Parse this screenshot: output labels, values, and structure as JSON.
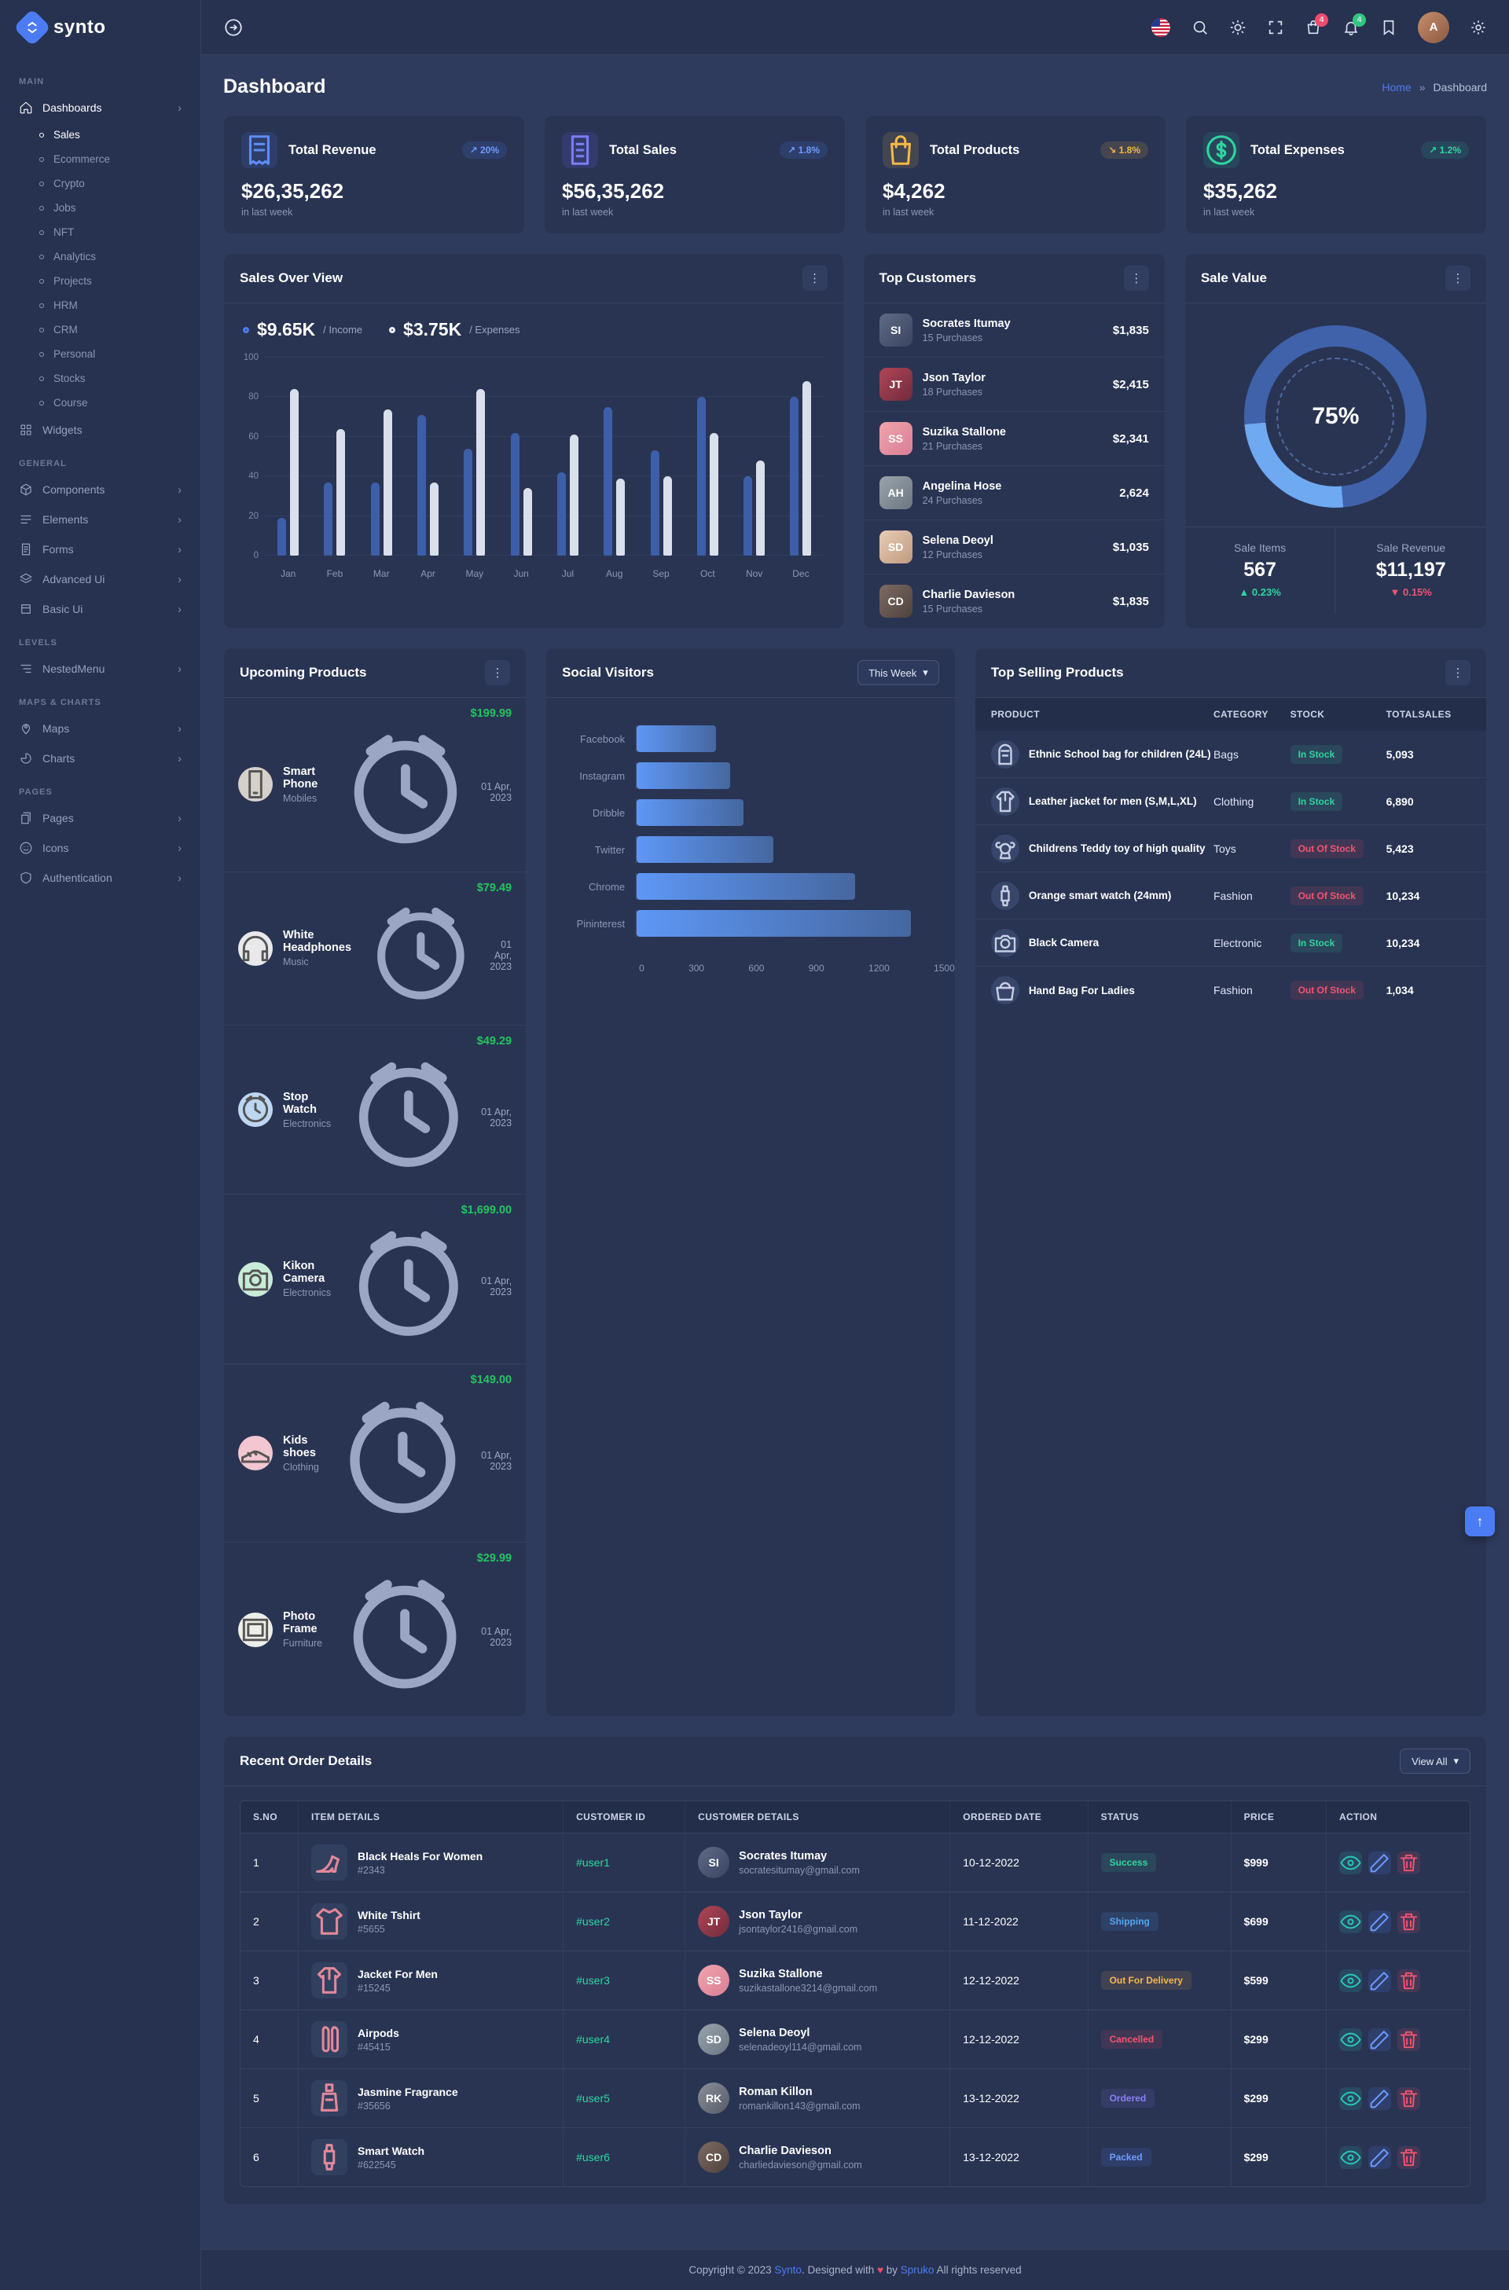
{
  "brand": {
    "name": "synto"
  },
  "topbar": {
    "cart_badge": "4",
    "bell_badge": "4",
    "avatar_initial": "A"
  },
  "sidebar": {
    "sections": [
      {
        "label": "MAIN",
        "items": [
          {
            "label": "Dashboards",
            "icon": "home",
            "chevron": true,
            "expanded": true,
            "active_child": "Sales",
            "children": [
              "Sales",
              "Ecommerce",
              "Crypto",
              "Jobs",
              "NFT",
              "Analytics",
              "Projects",
              "HRM",
              "CRM",
              "Personal",
              "Stocks",
              "Course"
            ]
          },
          {
            "label": "Widgets",
            "icon": "widgets",
            "chevron": false
          }
        ]
      },
      {
        "label": "GENERAL",
        "items": [
          {
            "label": "Components",
            "icon": "components",
            "chevron": true
          },
          {
            "label": "Elements",
            "icon": "elements",
            "chevron": true
          },
          {
            "label": "Forms",
            "icon": "forms",
            "chevron": true
          },
          {
            "label": "Advanced Ui",
            "icon": "advanced",
            "chevron": true
          },
          {
            "label": "Basic Ui",
            "icon": "basic",
            "chevron": true
          }
        ]
      },
      {
        "label": "LEVELS",
        "items": [
          {
            "label": "NestedMenu",
            "icon": "nested",
            "chevron": true
          }
        ]
      },
      {
        "label": "MAPS & CHARTS",
        "items": [
          {
            "label": "Maps",
            "icon": "maps",
            "chevron": true
          },
          {
            "label": "Charts",
            "icon": "charts",
            "chevron": true
          }
        ]
      },
      {
        "label": "PAGES",
        "items": [
          {
            "label": "Pages",
            "icon": "pages",
            "chevron": true
          },
          {
            "label": "Icons",
            "icon": "icons",
            "chevron": true
          },
          {
            "label": "Authentication",
            "icon": "auth",
            "chevron": true
          }
        ]
      }
    ]
  },
  "page": {
    "title": "Dashboard",
    "breadcrumb_home": "Home",
    "breadcrumb_sep": "»",
    "breadcrumb_current": "Dashboard"
  },
  "stats": {
    "cards": [
      {
        "title": "Total Revenue",
        "value": "$26,35,262",
        "sub": "in last week",
        "badge": "20%",
        "trend": "up",
        "color": "blue",
        "icon": "receipt"
      },
      {
        "title": "Total Sales",
        "value": "$56,35,262",
        "sub": "in last week",
        "badge": "1.8%",
        "trend": "up",
        "color": "indigo",
        "icon": "docs"
      },
      {
        "title": "Total Products",
        "value": "$4,262",
        "sub": "in last week",
        "badge": "1.8%",
        "trend": "down",
        "color": "yellow",
        "icon": "bag"
      },
      {
        "title": "Total Expenses",
        "value": "$35,262",
        "sub": "in last week",
        "badge": "1.2%",
        "trend": "up",
        "color": "green",
        "icon": "dollar"
      }
    ]
  },
  "sales": {
    "title": "Sales Over View",
    "income_value": "$9.65K",
    "income_label": "/ Income",
    "expenses_value": "$3.75K",
    "expenses_label": "/ Expenses",
    "chart_data": {
      "type": "bar",
      "categories": [
        "Jan",
        "Feb",
        "Mar",
        "Apr",
        "May",
        "Jun",
        "Jul",
        "Aug",
        "Sep",
        "Oct",
        "Nov",
        "Dec"
      ],
      "series": [
        {
          "name": "Income",
          "values": [
            19,
            37,
            37,
            71,
            54,
            62,
            42,
            75,
            53,
            80,
            40,
            80
          ]
        },
        {
          "name": "Expenses",
          "values": [
            84,
            64,
            74,
            37,
            84,
            34,
            61,
            39,
            40,
            62,
            48,
            88
          ]
        }
      ],
      "yticks": [
        100,
        80,
        60,
        40,
        20,
        0
      ],
      "ylim": [
        0,
        100
      ],
      "grid": true,
      "legend_position": "top"
    }
  },
  "customers": {
    "title": "Top Customers",
    "items": [
      {
        "name": "Socrates Itumay",
        "purchases": "15 Purchases",
        "amount": "$1,835",
        "initials": "SI",
        "color": "linear-gradient(135deg,#5f6b86,#3a4460)"
      },
      {
        "name": "Json Taylor",
        "purchases": "18 Purchases",
        "amount": "$2,415",
        "initials": "JT",
        "color": "linear-gradient(135deg,#b04657,#712b3b)"
      },
      {
        "name": "Suzika Stallone",
        "purchases": "21 Purchases",
        "amount": "$2,341",
        "initials": "SS",
        "color": "linear-gradient(135deg,#f0a4ad,#d97f95)"
      },
      {
        "name": "Angelina Hose",
        "purchases": "24 Purchases",
        "amount": "2,624",
        "initials": "AH",
        "color": "linear-gradient(135deg,#9aa4ad,#6c7680)"
      },
      {
        "name": "Selena Deoyl",
        "purchases": "12 Purchases",
        "amount": "$1,035",
        "initials": "SD",
        "color": "linear-gradient(135deg,#e8cdb8,#c09a7d)"
      },
      {
        "name": "Charlie Davieson",
        "purchases": "15 Purchases",
        "amount": "$1,835",
        "initials": "CD",
        "color": "linear-gradient(135deg,#7d6b63,#4e413c)"
      }
    ]
  },
  "sale_value": {
    "title": "Sale Value",
    "percent": "75%",
    "items_label": "Sale Items",
    "items_value": "567",
    "items_change": "0.23%",
    "revenue_label": "Sale Revenue",
    "revenue_value": "$11,197",
    "revenue_change": "0.15%"
  },
  "upcoming": {
    "title": "Upcoming Products",
    "items": [
      {
        "name": "Smart Phone",
        "category": "Mobiles",
        "price": "$199.99",
        "date": "01 Apr, 2023",
        "icon": "phone",
        "bg": "#d6d0ca"
      },
      {
        "name": "White Headphones",
        "category": "Music",
        "price": "$79.49",
        "date": "01 Apr, 2023",
        "icon": "headphones",
        "bg": "#e9e9eb"
      },
      {
        "name": "Stop Watch",
        "category": "Electronics",
        "price": "$49.29",
        "date": "01 Apr, 2023",
        "icon": "clock",
        "bg": "#bdd7f1"
      },
      {
        "name": "Kikon Camera",
        "category": "Electronics",
        "price": "$1,699.00",
        "date": "01 Apr, 2023",
        "icon": "camera",
        "bg": "#c8ecd8"
      },
      {
        "name": "Kids shoes",
        "category": "Clothing",
        "price": "$149.00",
        "date": "01 Apr, 2023",
        "icon": "shoes",
        "bg": "#f2c7d2"
      },
      {
        "name": "Photo Frame",
        "category": "Furniture",
        "price": "$29.99",
        "date": "01 Apr, 2023",
        "icon": "frame",
        "bg": "#edefe8"
      }
    ]
  },
  "social": {
    "title": "Social Visitors",
    "filter": "This Week",
    "chart_data": {
      "type": "bar",
      "orientation": "horizontal",
      "categories": [
        "Facebook",
        "Instagram",
        "Dribble",
        "Twitter",
        "Chrome",
        "Pininterest"
      ],
      "values": [
        400,
        470,
        540,
        690,
        1100,
        1380
      ],
      "xticks": [
        0,
        300,
        600,
        900,
        1200,
        1500
      ],
      "xlim": [
        0,
        1500
      ],
      "grid": false
    }
  },
  "top_selling": {
    "title": "Top Selling Products",
    "columns": [
      "PRODUCT",
      "CATEGORY",
      "STOCK",
      "TOTALSALES"
    ],
    "rows": [
      {
        "product": "Ethnic School bag for children (24L)",
        "category": "Bags",
        "stock": "In Stock",
        "stock_state": "in",
        "sales": "5,093",
        "icon": "bagpack"
      },
      {
        "product": "Leather jacket for men (S,M,L,XL)",
        "category": "Clothing",
        "stock": "In Stock",
        "stock_state": "in",
        "sales": "6,890",
        "icon": "jacket"
      },
      {
        "product": "Childrens Teddy toy of high quality",
        "category": "Toys",
        "stock": "Out Of Stock",
        "stock_state": "out",
        "sales": "5,423",
        "icon": "teddy"
      },
      {
        "product": "Orange smart watch (24mm)",
        "category": "Fashion",
        "stock": "Out Of Stock",
        "stock_state": "out",
        "sales": "10,234",
        "icon": "watch"
      },
      {
        "product": "Black Camera",
        "category": "Electronic",
        "stock": "In Stock",
        "stock_state": "in",
        "sales": "10,234",
        "icon": "camera"
      },
      {
        "product": "Hand Bag For Ladies",
        "category": "Fashion",
        "stock": "Out Of Stock",
        "stock_state": "out",
        "sales": "1,034",
        "icon": "handbag"
      }
    ]
  },
  "orders": {
    "title": "Recent Order Details",
    "view_all": "View All",
    "columns": [
      "S.NO",
      "ITEM DETAILS",
      "CUSTOMER ID",
      "CUSTOMER DETAILS",
      "ORDERED DATE",
      "STATUS",
      "PRICE",
      "ACTION"
    ],
    "rows": [
      {
        "sno": "1",
        "item": "Black Heals For Women",
        "code": "#2343",
        "icon": "heel",
        "uid": "#user1",
        "customer": "Socrates Itumay",
        "email": "socratesitumay@gmail.com",
        "initials": "SI",
        "avc": "linear-gradient(135deg,#5f6b86,#3a4460)",
        "date": "10-12-2022",
        "status": "Success",
        "status_class": "st-success",
        "price": "$999"
      },
      {
        "sno": "2",
        "item": "White Tshirt",
        "code": "#5655",
        "icon": "tshirt",
        "uid": "#user2",
        "customer": "Json Taylor",
        "email": "jsontaylor2416@gmail.com",
        "initials": "JT",
        "avc": "linear-gradient(135deg,#b04657,#712b3b)",
        "date": "11-12-2022",
        "status": "Shipping",
        "status_class": "st-info",
        "price": "$699"
      },
      {
        "sno": "3",
        "item": "Jacket For Men",
        "code": "#15245",
        "icon": "jacket",
        "uid": "#user3",
        "customer": "Suzika Stallone",
        "email": "suzikastallone3214@gmail.com",
        "initials": "SS",
        "avc": "linear-gradient(135deg,#f0a4ad,#d97f95)",
        "date": "12-12-2022",
        "status": "Out For Delivery",
        "status_class": "st-warning",
        "price": "$599"
      },
      {
        "sno": "4",
        "item": "Airpods",
        "code": "#45415",
        "icon": "airpods",
        "uid": "#user4",
        "customer": "Selena Deoyl",
        "email": "selenadeoyl114@gmail.com",
        "initials": "SD",
        "avc": "linear-gradient(135deg,#9aa4ad,#6c7680)",
        "date": "12-12-2022",
        "status": "Cancelled",
        "status_class": "st-danger",
        "price": "$299"
      },
      {
        "sno": "5",
        "item": "Jasmine Fragrance",
        "code": "#35656",
        "icon": "perfume",
        "uid": "#user5",
        "customer": "Roman Killon",
        "email": "romankillon143@gmail.com",
        "initials": "RK",
        "avc": "linear-gradient(135deg,#8a8f99,#565c68)",
        "date": "13-12-2022",
        "status": "Ordered",
        "status_class": "st-purple",
        "price": "$299"
      },
      {
        "sno": "6",
        "item": "Smart Watch",
        "code": "#622545",
        "icon": "watch",
        "uid": "#user6",
        "customer": "Charlie Davieson",
        "email": "charliedavieson@gmail.com",
        "initials": "CD",
        "avc": "linear-gradient(135deg,#7d6b63,#4e413c)",
        "date": "13-12-2022",
        "status": "Packed",
        "status_class": "st-blue",
        "price": "$299"
      }
    ]
  },
  "footer": {
    "pre": "Copyright © 2023 ",
    "brand": "Synto",
    "mid": ". Designed with ",
    "heart": "♥",
    "by": " by ",
    "designer": "Spruko",
    "post": " All rights reserved"
  }
}
